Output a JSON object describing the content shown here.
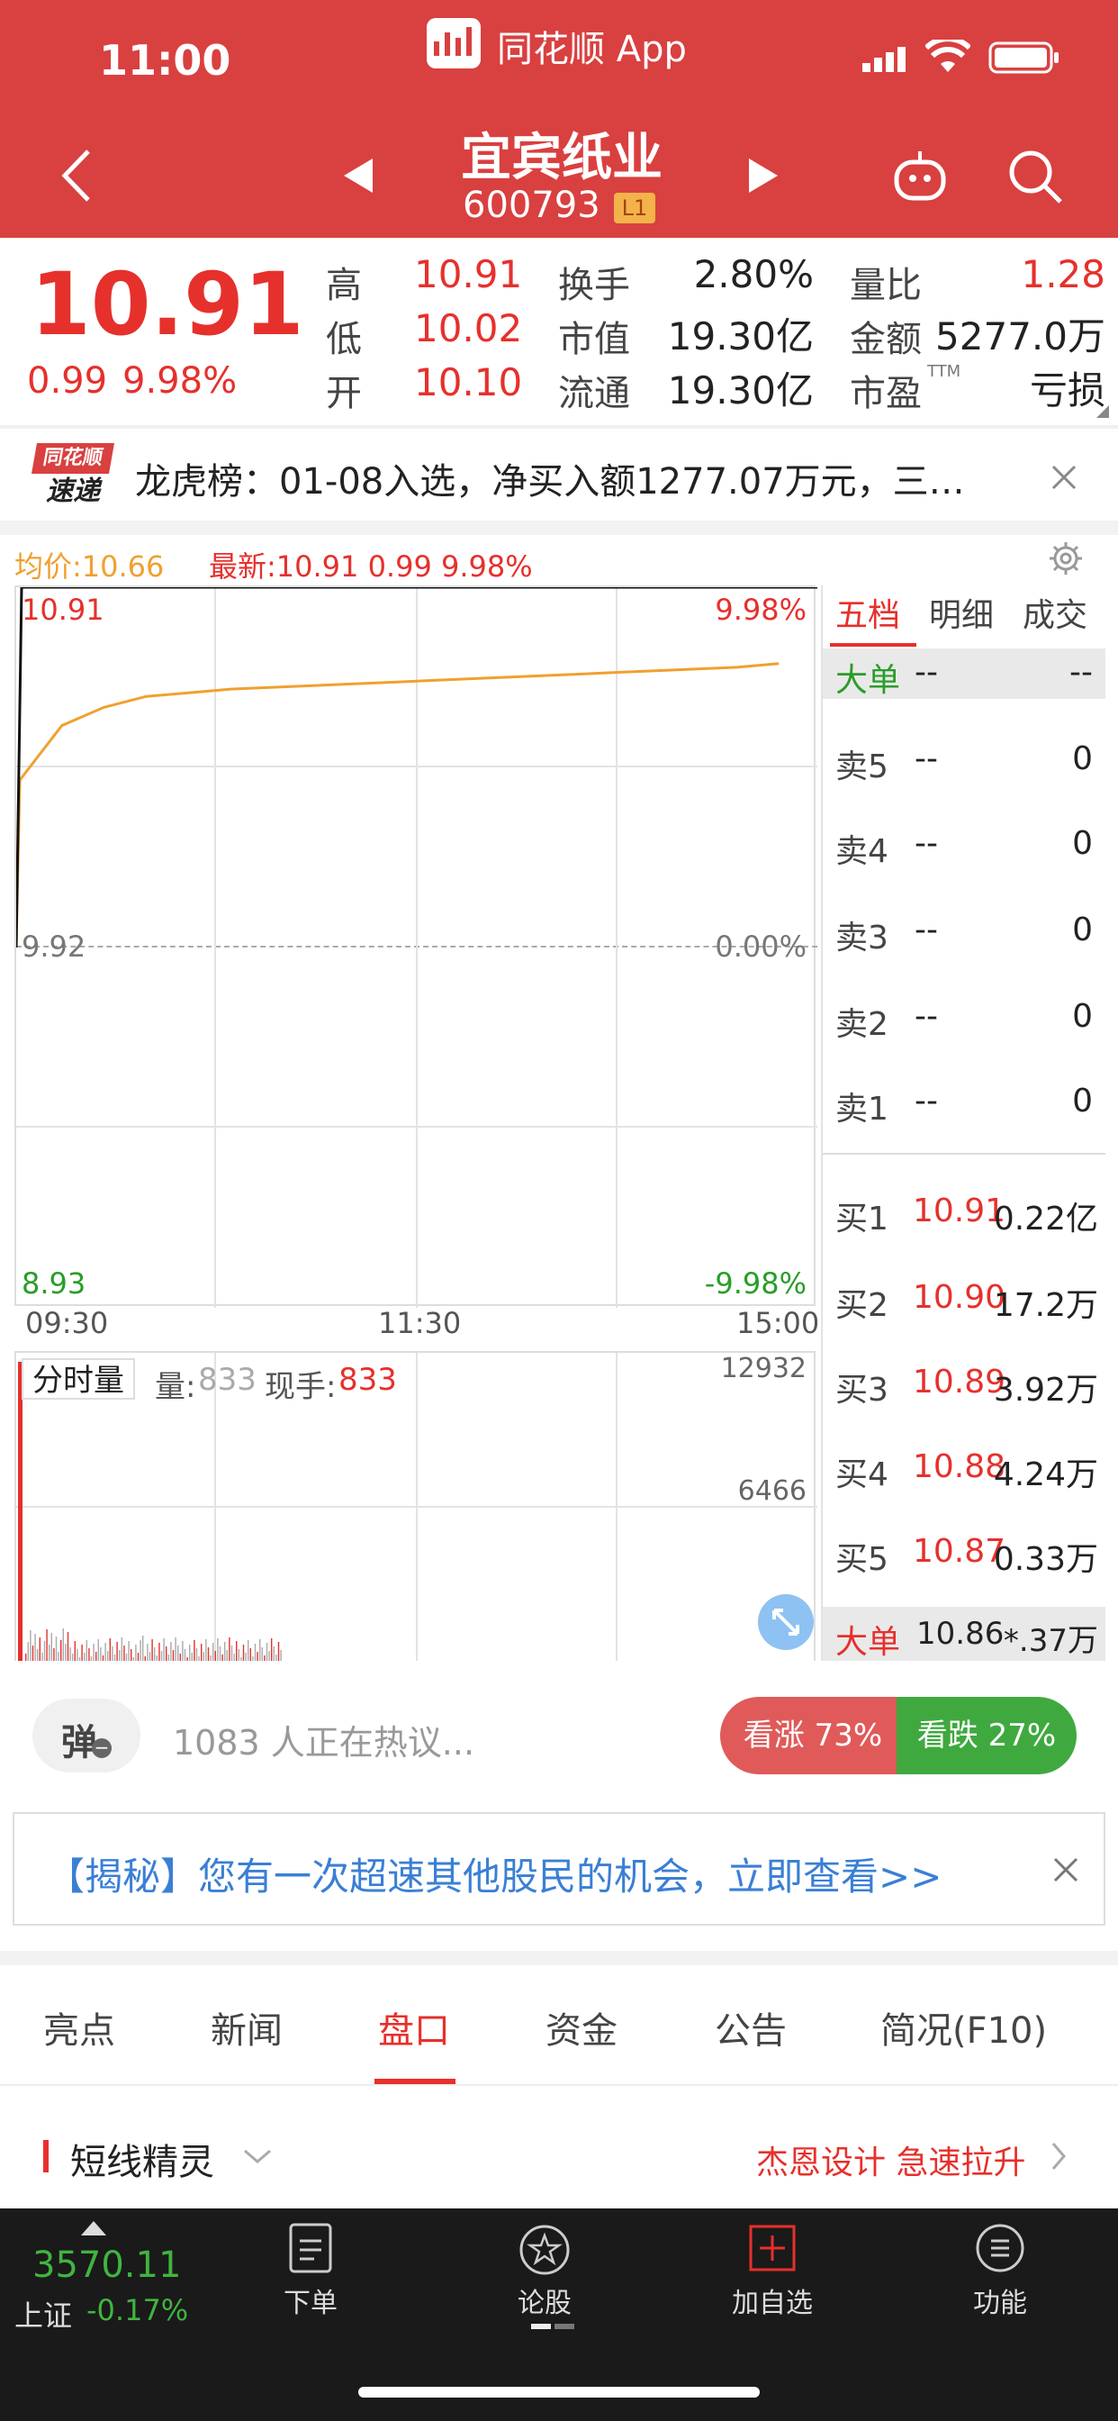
{
  "status_bar": {
    "time": "11:00",
    "app_name": "同花顺 App"
  },
  "header": {
    "stock_name": "宜宾纸业",
    "stock_code": "600793",
    "level_badge": "L1"
  },
  "quote": {
    "price": "10.91",
    "change": "0.99",
    "change_pct": "9.98%",
    "high_label": "高",
    "high": "10.91",
    "low_label": "低",
    "low": "10.02",
    "open_label": "开",
    "open": "10.10",
    "turnover_label": "换手",
    "turnover": "2.80%",
    "mktcap_label": "市值",
    "mktcap": "19.30亿",
    "float_label": "流通",
    "float": "19.30亿",
    "volratio_label": "量比",
    "volratio": "1.28",
    "amount_label": "金额",
    "amount": "5277.0万",
    "pe_label": "市盈",
    "pe_sup": "TTM",
    "pe": "亏损"
  },
  "news_ticker": {
    "badge_top": "同花顺",
    "badge_bottom": "速递",
    "text": "龙虎榜：01-08入选，净买入额1277.07万元，三…"
  },
  "chart": {
    "avg_label": "均价:10.66",
    "latest_label": "最新:10.91 0.99 9.98%",
    "price_high": "10.91",
    "pct_high": "9.98%",
    "price_mid": "9.92",
    "pct_mid": "0.00%",
    "price_low": "8.93",
    "pct_low": "-9.98%",
    "time_start": "09:30",
    "time_mid": "11:30",
    "time_end": "15:00",
    "vol_tag": "分时量",
    "vol_label": "量:",
    "vol_value": "833",
    "hand_label": "现手:",
    "hand_value": "833",
    "vol_max": "12932",
    "vol_mid": "6466"
  },
  "orderbook": {
    "tabs": [
      "五档",
      "明细",
      "成交"
    ],
    "big_top_label": "大单",
    "big_top_mid": "--",
    "big_top_right": "--",
    "asks": [
      {
        "label": "卖5",
        "price": "--",
        "vol": "0"
      },
      {
        "label": "卖4",
        "price": "--",
        "vol": "0"
      },
      {
        "label": "卖3",
        "price": "--",
        "vol": "0"
      },
      {
        "label": "卖2",
        "price": "--",
        "vol": "0"
      },
      {
        "label": "卖1",
        "price": "--",
        "vol": "0"
      }
    ],
    "bids": [
      {
        "label": "买1",
        "price": "10.91",
        "vol": "0.22亿"
      },
      {
        "label": "买2",
        "price": "10.90",
        "vol": "17.2万"
      },
      {
        "label": "买3",
        "price": "10.89",
        "vol": "3.92万"
      },
      {
        "label": "买4",
        "price": "10.88",
        "vol": "4.24万"
      },
      {
        "label": "买5",
        "price": "10.87",
        "vol": "0.33万"
      }
    ],
    "big_bottom_label": "大单",
    "big_bottom_price": "10.86",
    "big_bottom_vol": "*.37万"
  },
  "discussion": {
    "danmu_label": "弹",
    "text": "1083 人正在热议...",
    "bull": "看涨 73%",
    "bear": "看跌 27%",
    "bull_pct": 73
  },
  "promo": {
    "text": "【揭秘】您有一次超速其他股民的机会，立即查看>>"
  },
  "tabs": [
    "亮点",
    "新闻",
    "盘口",
    "资金",
    "公告",
    "简况(F10)"
  ],
  "active_tab": 2,
  "section": {
    "title": "短线精灵",
    "right_text": "杰恩设计 急速拉升"
  },
  "bottom_nav": {
    "index_value": "3570.11",
    "index_name": "上证",
    "index_change": "-0.17%",
    "items": [
      "下单",
      "论股",
      "加自选",
      "功能"
    ]
  },
  "series": {
    "price_line": [
      9.92,
      10.38,
      10.53,
      10.58,
      10.61,
      10.62,
      10.63,
      10.635,
      10.64,
      10.645,
      10.65,
      10.655,
      10.66,
      10.665,
      10.67,
      10.675,
      10.68,
      10.685,
      10.69,
      10.7
    ]
  },
  "colors": {
    "header_bg": "#d94040",
    "accent_red": "#e6302c",
    "accent_green": "#2a9d2a",
    "avg_line": "#f0a030"
  }
}
